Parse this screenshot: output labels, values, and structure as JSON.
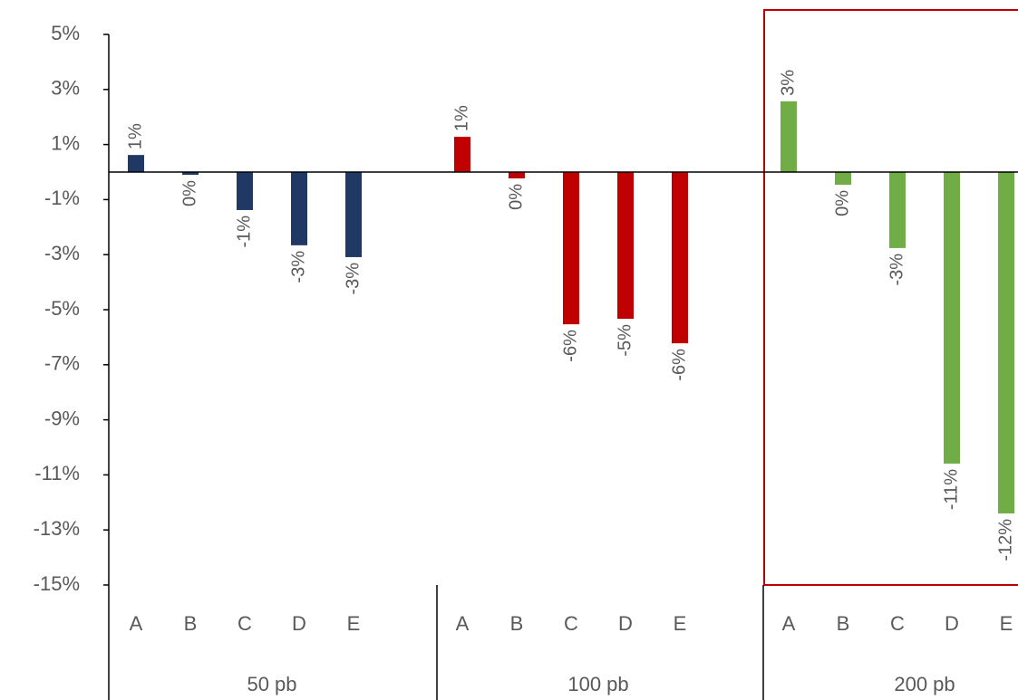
{
  "chart_data": {
    "type": "bar",
    "ylim": [
      -15,
      5
    ],
    "yticks": [
      {
        "value": 5,
        "label": "5%"
      },
      {
        "value": 3,
        "label": "3%"
      },
      {
        "value": 1,
        "label": "1%"
      },
      {
        "value": -1,
        "label": "-1%"
      },
      {
        "value": -3,
        "label": "-3%"
      },
      {
        "value": -5,
        "label": "-5%"
      },
      {
        "value": -7,
        "label": "-7%"
      },
      {
        "value": -9,
        "label": "-9%"
      },
      {
        "value": -11,
        "label": "-11%"
      },
      {
        "value": -13,
        "label": "-13%"
      },
      {
        "value": -15,
        "label": "-15%"
      }
    ],
    "groups": [
      {
        "name": "50 pb",
        "color": "#1f3864",
        "categories": [
          "A",
          "B",
          "C",
          "D",
          "E"
        ],
        "values": [
          0.62,
          -0.1,
          -1.38,
          -2.66,
          -3.09
        ],
        "value_labels": [
          "1%",
          "0%",
          "-1%",
          "-3%",
          "-3%"
        ]
      },
      {
        "name": "100 pb",
        "color": "#c00000",
        "categories": [
          "A",
          "B",
          "C",
          "D",
          "E"
        ],
        "values": [
          1.28,
          -0.23,
          -5.53,
          -5.33,
          -6.22
        ],
        "value_labels": [
          "1%",
          "0%",
          "-6%",
          "-5%",
          "-6%"
        ]
      },
      {
        "name": "200 pb",
        "color": "#70ad47",
        "categories": [
          "A",
          "B",
          "C",
          "D",
          "E"
        ],
        "values": [
          2.57,
          -0.46,
          -2.76,
          -10.59,
          -12.4
        ],
        "value_labels": [
          "3%",
          "0%",
          "-3%",
          "-11%",
          "-12%"
        ]
      }
    ]
  }
}
